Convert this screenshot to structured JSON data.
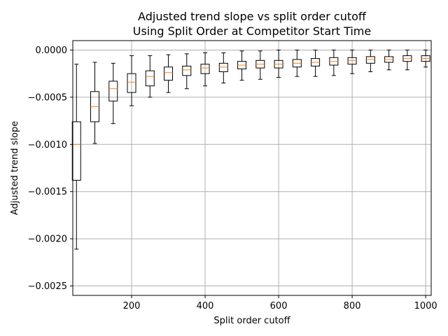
{
  "chart_data": {
    "type": "boxplot",
    "title": "Adjusted trend slope vs split order cutoff",
    "subtitle": "Using Split Order at Competitor Start Time",
    "xlabel": "Split order cutoff",
    "ylabel": "Adjusted trend slope",
    "xlim": [
      40,
      1015
    ],
    "ylim": [
      -0.0026,
      0.0001
    ],
    "xticks": [
      200,
      400,
      600,
      800,
      1000
    ],
    "yticks": [
      0.0,
      -0.0005,
      -0.001,
      -0.0015,
      -0.002,
      -0.0025
    ],
    "xtick_labels": [
      "200",
      "400",
      "600",
      "800",
      "1000"
    ],
    "ytick_labels": [
      "0.0000",
      "−0.0005",
      "−0.0010",
      "−0.0015",
      "−0.0020",
      "−0.0025"
    ],
    "grid": true,
    "colors": {
      "box": "#000000",
      "median": "#ff7f0e",
      "grid": "#b0b0b0"
    },
    "boxes": [
      {
        "x": 50,
        "whislo": -0.00211,
        "q1": -0.00138,
        "med": -0.001,
        "q3": -0.00076,
        "whishi": -0.00015
      },
      {
        "x": 100,
        "whislo": -0.00099,
        "q1": -0.00076,
        "med": -0.0006,
        "q3": -0.00044,
        "whishi": -0.00013
      },
      {
        "x": 150,
        "whislo": -0.00078,
        "q1": -0.00054,
        "med": -0.00041,
        "q3": -0.00033,
        "whishi": -0.00014
      },
      {
        "x": 200,
        "whislo": -0.00059,
        "q1": -0.00045,
        "med": -0.00034,
        "q3": -0.00025,
        "whishi": -6e-05
      },
      {
        "x": 250,
        "whislo": -0.0005,
        "q1": -0.00038,
        "med": -0.00028,
        "q3": -0.00022,
        "whishi": -6e-05
      },
      {
        "x": 300,
        "whislo": -0.00045,
        "q1": -0.00032,
        "med": -0.00024,
        "q3": -0.00018,
        "whishi": -5e-05
      },
      {
        "x": 350,
        "whislo": -0.00041,
        "q1": -0.00027,
        "med": -0.00021,
        "q3": -0.00017,
        "whishi": -4e-05
      },
      {
        "x": 400,
        "whislo": -0.00038,
        "q1": -0.00025,
        "med": -0.00019,
        "q3": -0.00015,
        "whishi": -3e-05
      },
      {
        "x": 450,
        "whislo": -0.00035,
        "q1": -0.00023,
        "med": -0.00018,
        "q3": -0.00014,
        "whishi": -3e-05
      },
      {
        "x": 500,
        "whislo": -0.00032,
        "q1": -0.0002,
        "med": -0.00016,
        "q3": -0.00012,
        "whishi": -1e-05
      },
      {
        "x": 550,
        "whislo": -0.00031,
        "q1": -0.00019,
        "med": -0.00015,
        "q3": -0.00011,
        "whishi": -1e-05
      },
      {
        "x": 600,
        "whislo": -0.00029,
        "q1": -0.00019,
        "med": -0.00015,
        "q3": -0.00011,
        "whishi": 0.0
      },
      {
        "x": 650,
        "whislo": -0.00028,
        "q1": -0.00018,
        "med": -0.00014,
        "q3": -0.0001,
        "whishi": 0.0
      },
      {
        "x": 700,
        "whislo": -0.00028,
        "q1": -0.00017,
        "med": -0.00013,
        "q3": -9e-05,
        "whishi": 0.0
      },
      {
        "x": 750,
        "whislo": -0.00027,
        "q1": -0.00016,
        "med": -0.00012,
        "q3": -8e-05,
        "whishi": 0.0
      },
      {
        "x": 800,
        "whislo": -0.00025,
        "q1": -0.00015,
        "med": -0.00011,
        "q3": -8e-05,
        "whishi": 0.0
      },
      {
        "x": 850,
        "whislo": -0.00023,
        "q1": -0.00014,
        "med": -0.0001,
        "q3": -7e-05,
        "whishi": 0.0
      },
      {
        "x": 900,
        "whislo": -0.00021,
        "q1": -0.00013,
        "med": -0.0001,
        "q3": -7e-05,
        "whishi": 0.0
      },
      {
        "x": 950,
        "whislo": -0.00021,
        "q1": -0.00012,
        "med": -9e-05,
        "q3": -6e-05,
        "whishi": 0.0
      },
      {
        "x": 1000,
        "whislo": -0.00018,
        "q1": -0.00012,
        "med": -9e-05,
        "q3": -6e-05,
        "whishi": 0.0
      }
    ]
  }
}
